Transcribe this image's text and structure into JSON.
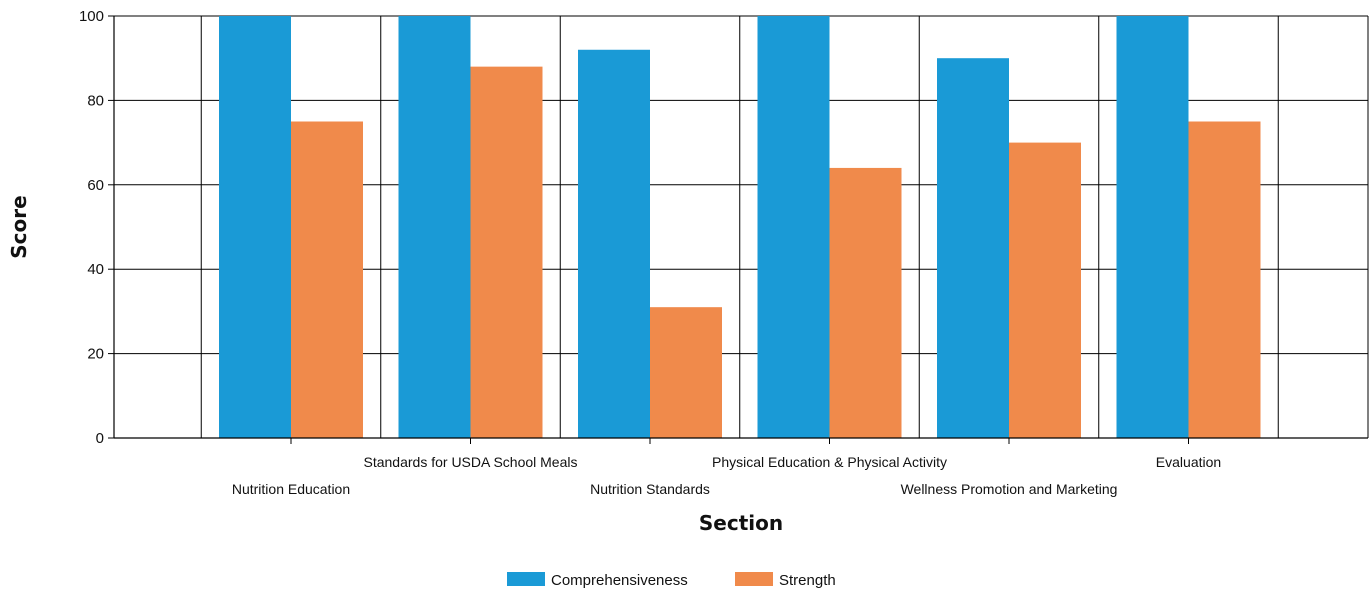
{
  "chart_data": {
    "type": "bar",
    "title": "",
    "xlabel": "Section",
    "ylabel": "Score",
    "ylim": [
      0,
      100
    ],
    "yticks": [
      0,
      20,
      40,
      60,
      80,
      100
    ],
    "grid": true,
    "legend_position": "bottom",
    "categories": [
      "Nutrition Education",
      "Standards for USDA School Meals",
      "Nutrition Standards",
      "Physical Education & Physical Activity",
      "Wellness Promotion and Marketing",
      "Evaluation"
    ],
    "series": [
      {
        "name": "Comprehensiveness",
        "color": "#1a9ad6",
        "values": [
          100,
          100,
          92,
          100,
          90,
          100
        ]
      },
      {
        "name": "Strength",
        "color": "#f08a4b",
        "values": [
          75,
          88,
          31,
          64,
          70,
          75
        ]
      }
    ]
  }
}
